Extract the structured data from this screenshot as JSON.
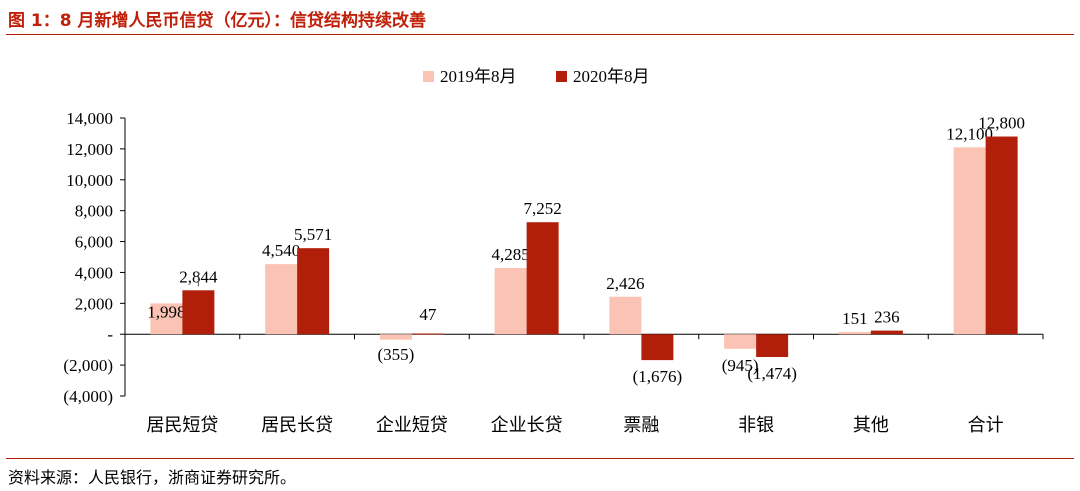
{
  "header": {
    "title": "图 1：8 月新增人民币信贷（亿元）：信贷结构持续改善"
  },
  "footer": {
    "source": "资料来源：人民银行，浙商证券研究所。"
  },
  "colors": {
    "accent": "#c0200a",
    "series_2019": "#fbc3b4",
    "series_2020": "#b11f0a"
  },
  "chart_data": {
    "type": "bar",
    "categories": [
      "居民短贷",
      "居民长贷",
      "企业短贷",
      "企业长贷",
      "票融",
      "非银",
      "其他",
      "合计"
    ],
    "series": [
      {
        "name": "2019年8月",
        "values": [
          1998,
          4540,
          -355,
          4285,
          2426,
          -945,
          151,
          12100
        ]
      },
      {
        "name": "2020年8月",
        "values": [
          2844,
          5571,
          47,
          7252,
          -1676,
          -1474,
          236,
          12800
        ]
      }
    ],
    "value_labels": [
      [
        "1,998",
        "4,540",
        "(355)",
        "4,285",
        "2,426",
        "(945)",
        "151",
        "12,100"
      ],
      [
        "2,844",
        "5,571",
        "47",
        "7,252",
        "(1,676)",
        "(1,474)",
        "236",
        "12,800"
      ]
    ],
    "yticks": [
      {
        "value": 14000,
        "label": "14,000"
      },
      {
        "value": 12000,
        "label": "12,000"
      },
      {
        "value": 10000,
        "label": "10,000"
      },
      {
        "value": 8000,
        "label": "8,000"
      },
      {
        "value": 6000,
        "label": "6,000"
      },
      {
        "value": 4000,
        "label": "4,000"
      },
      {
        "value": 2000,
        "label": "2,000"
      },
      {
        "value": 0,
        "label": "-"
      },
      {
        "value": -2000,
        "label": "(2,000)"
      },
      {
        "value": -4000,
        "label": "(4,000)"
      }
    ],
    "ylim": [
      -4000,
      14000
    ],
    "grid": false,
    "legend_position": "top-center",
    "title": "",
    "xlabel": "",
    "ylabel": ""
  }
}
